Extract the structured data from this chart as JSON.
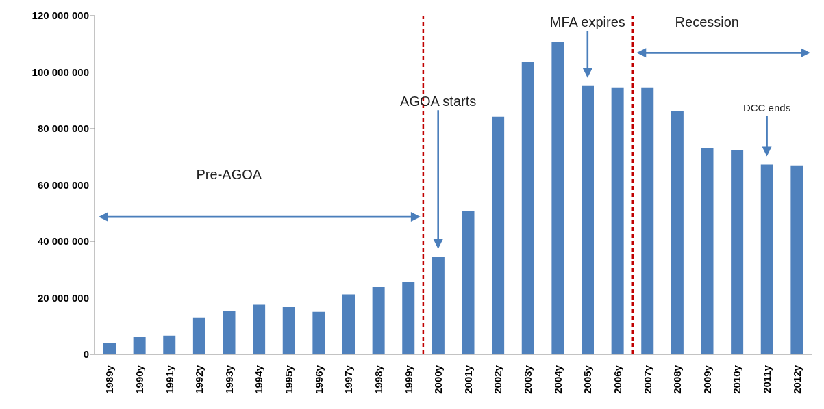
{
  "chart_data": {
    "type": "bar",
    "categories": [
      "1989y",
      "1990y",
      "1991y",
      "1992y",
      "1993y",
      "1994y",
      "1995y",
      "1996y",
      "1997y",
      "1998y",
      "1999y",
      "2000y",
      "2001y",
      "2002y",
      "2003y",
      "2004y",
      "2005y",
      "2006y",
      "2007y",
      "2008y",
      "2009y",
      "2010y",
      "2011y",
      "2012y"
    ],
    "values": [
      4100000,
      6300000,
      6600000,
      12900000,
      15400000,
      17600000,
      16700000,
      15100000,
      21200000,
      23900000,
      25500000,
      34400000,
      50800000,
      84200000,
      103500000,
      110800000,
      95100000,
      94600000,
      94600000,
      86300000,
      73100000,
      72500000,
      67300000,
      67000000
    ],
    "color": "#4f81bd",
    "ylim": [
      0,
      120000000
    ],
    "yticks": [
      {
        "value": 0,
        "label": "0"
      },
      {
        "value": 20000000,
        "label": "20 000 000"
      },
      {
        "value": 40000000,
        "label": "40 000 000"
      },
      {
        "value": 60000000,
        "label": "60 000 000"
      },
      {
        "value": 80000000,
        "label": "80 000 000"
      },
      {
        "value": 100000000,
        "label": "100 000 000"
      },
      {
        "value": 120000000,
        "label": "120 000 000"
      }
    ],
    "ref_lines": [
      {
        "axis": "x",
        "value": "2000y",
        "color": "#c00000",
        "line_style": "dashed"
      },
      {
        "axis": "x",
        "value": "2007y",
        "color": "#c00000",
        "line_style": "dashed"
      }
    ],
    "annotations": [
      "Pre-AGOA",
      "AGOA starts",
      "MFA expires",
      "Recession",
      "DCC ends"
    ],
    "grid": false,
    "legend": false
  }
}
